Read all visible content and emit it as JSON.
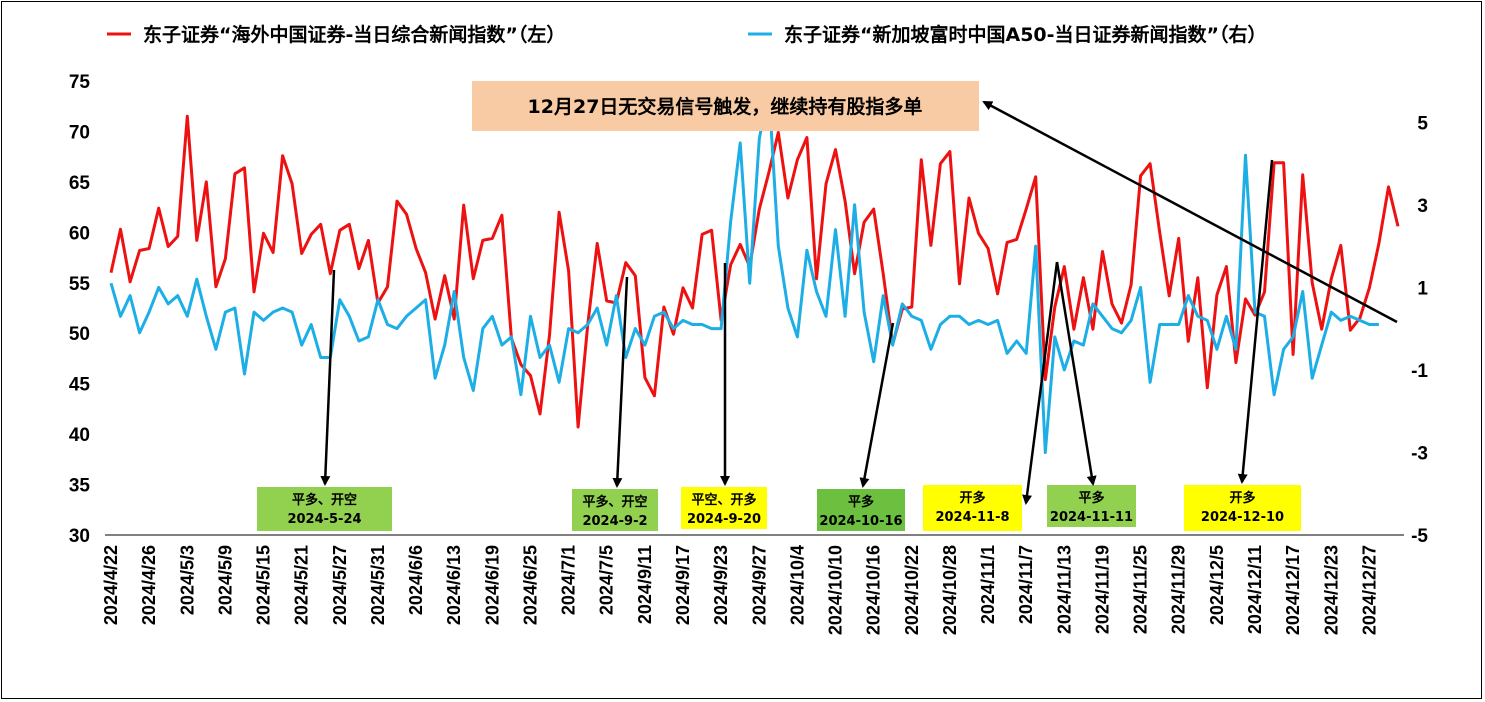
{
  "chart_data": {
    "type": "line",
    "legend": {
      "placement": "top",
      "entries": [
        {
          "label": "东子证券“海外中国证券-当日综合新闻指数”（左）",
          "color": "#ee1111"
        },
        {
          "label": "东子证券“新加坡富时中国A50-当日证券新闻指数”（右）",
          "color": "#1eaee6"
        }
      ]
    },
    "y_left": {
      "min": 30,
      "max": 75,
      "ticks": [
        "30",
        "35",
        "40",
        "45",
        "50",
        "55",
        "60",
        "65",
        "70",
        "75"
      ]
    },
    "y_right": {
      "min": -5,
      "max": 6,
      "ticks": [
        "-5",
        "-3",
        "-1",
        "1",
        "3",
        "5"
      ]
    },
    "x_tick_labels": [
      "2024/4/22",
      "2024/4/26",
      "2024/5/3",
      "2024/5/9",
      "2024/5/15",
      "2024/5/21",
      "2024/5/27",
      "2024/5/31",
      "2024/6/6",
      "2024/6/13",
      "2024/6/19",
      "2024/6/25",
      "2024/7/1",
      "2024/7/5",
      "2024/9/11",
      "2024/9/17",
      "2024/9/23",
      "2024/9/27",
      "2024/10/4",
      "2024/10/10",
      "2024/10/16",
      "2024/10/22",
      "2024/10/28",
      "2024/11/1",
      "2024/11/7",
      "2024/11/13",
      "2024/11/19",
      "2024/11/25",
      "2024/11/29",
      "2024/12/5",
      "2024/12/11",
      "2024/12/17",
      "2024/12/23",
      "2024/12/27"
    ],
    "x_tick_every": 4,
    "series": [
      {
        "name": "东子证券“海外中国证券-当日综合新闻指数”（左）",
        "axis": "left",
        "color": "#ee1111",
        "values": [
          56.0,
          60.3,
          55.1,
          58.2,
          58.4,
          62.4,
          58.6,
          59.6,
          71.5,
          59.2,
          65.0,
          54.6,
          57.4,
          65.8,
          66.4,
          54.1,
          59.9,
          58.0,
          67.6,
          64.8,
          57.9,
          59.8,
          60.8,
          55.9,
          60.2,
          60.8,
          56.4,
          59.2,
          53.0,
          54.6,
          63.1,
          61.8,
          58.4,
          56.0,
          51.4,
          55.7,
          51.4,
          62.7,
          55.4,
          59.2,
          59.4,
          61.7,
          49.5,
          46.9,
          45.8,
          42.0,
          49.8,
          62.0,
          56.2,
          40.7,
          50.8,
          58.9,
          53.2,
          53.0,
          57.0,
          55.7,
          45.6,
          43.8,
          52.6,
          49.9,
          54.5,
          52.5,
          59.8,
          60.2,
          51.3,
          56.8,
          58.8,
          56.6,
          62.3,
          65.9,
          69.9,
          63.4,
          67.2,
          69.4,
          55.4,
          64.8,
          68.2,
          63.1,
          55.9,
          61.0,
          62.3,
          55.9,
          48.9,
          52.4,
          52.6,
          67.2,
          58.7,
          66.8,
          68.0,
          54.9,
          63.4,
          59.9,
          58.4,
          53.9,
          59.0,
          59.3,
          62.3,
          65.5,
          45.4,
          52.6,
          56.6,
          50.4,
          55.5,
          50.4,
          58.1,
          52.9,
          51.0,
          54.8,
          65.6,
          66.8,
          60.0,
          53.7,
          59.4,
          49.2,
          55.5,
          44.6,
          53.8,
          56.6,
          47.1,
          53.4,
          51.8,
          54.1,
          66.9,
          66.9,
          47.9,
          65.7,
          55.0,
          50.4,
          55.4,
          58.7,
          50.3,
          51.5,
          54.5,
          58.9,
          64.5,
          60.6
        ]
      },
      {
        "name": "东子证券“新加坡富时中国A50-当日证券新闻指数”（右）",
        "axis": "right",
        "color": "#1eaee6",
        "values": [
          1.1,
          0.3,
          0.8,
          -0.1,
          0.4,
          1.0,
          0.6,
          0.8,
          0.3,
          1.2,
          0.3,
          -0.5,
          0.4,
          0.5,
          -1.1,
          0.4,
          0.2,
          0.4,
          0.5,
          0.4,
          -0.4,
          0.1,
          -0.7,
          -0.7,
          0.7,
          0.3,
          -0.3,
          -0.2,
          0.7,
          0.1,
          0.0,
          0.3,
          0.5,
          0.7,
          -1.2,
          -0.4,
          0.9,
          -0.7,
          -1.5,
          0.0,
          0.3,
          -0.4,
          -0.2,
          -1.6,
          0.3,
          -0.7,
          -0.4,
          -1.3,
          0.0,
          -0.1,
          0.1,
          0.5,
          -0.4,
          0.8,
          -0.7,
          0.0,
          -0.4,
          0.3,
          0.4,
          0.0,
          0.2,
          0.1,
          0.1,
          0.0,
          0.0,
          2.6,
          4.5,
          1.1,
          4.6,
          5.8,
          2.0,
          0.5,
          -0.2,
          1.9,
          0.9,
          0.3,
          2.4,
          0.3,
          3.0,
          0.4,
          -0.8,
          0.8,
          -0.4,
          0.6,
          0.3,
          0.2,
          -0.5,
          0.1,
          0.3,
          0.3,
          0.1,
          0.2,
          0.1,
          0.2,
          -0.6,
          -0.3,
          -0.6,
          2.0,
          -3.0,
          -0.2,
          -1.0,
          -0.3,
          -0.4,
          0.6,
          0.3,
          0.0,
          -0.1,
          0.2,
          1.0,
          -1.3,
          0.1,
          0.1,
          0.1,
          0.8,
          0.3,
          0.2,
          -0.5,
          0.3,
          -0.5,
          4.2,
          0.4,
          0.3,
          -1.6,
          -0.5,
          -0.2,
          0.9,
          -1.2,
          -0.4,
          0.4,
          0.2,
          0.3,
          0.2,
          0.1,
          0.1
        ]
      }
    ],
    "note": {
      "text": "12月27日无交易信号触发，继续持有股指多单",
      "bg": "#f9cba4"
    },
    "signals": [
      {
        "lines": [
          "平多、开空",
          "2024-5-24"
        ],
        "bg": "#92d050"
      },
      {
        "lines": [
          "平多、开空",
          "2024-9-2"
        ],
        "bg": "#92d050"
      },
      {
        "lines": [
          "平空、开多",
          "2024-9-20"
        ],
        "bg": "#ffff00"
      },
      {
        "lines": [
          "平多",
          "2024-10-16"
        ],
        "bg": "#6dbf3f"
      },
      {
        "lines": [
          "开多",
          "2024-11-8"
        ],
        "bg": "#ffff00"
      },
      {
        "lines": [
          "平多",
          "2024-11-11"
        ],
        "bg": "#92d050"
      },
      {
        "lines": [
          "开多",
          "2024-12-10"
        ],
        "bg": "#ffff00"
      }
    ]
  }
}
